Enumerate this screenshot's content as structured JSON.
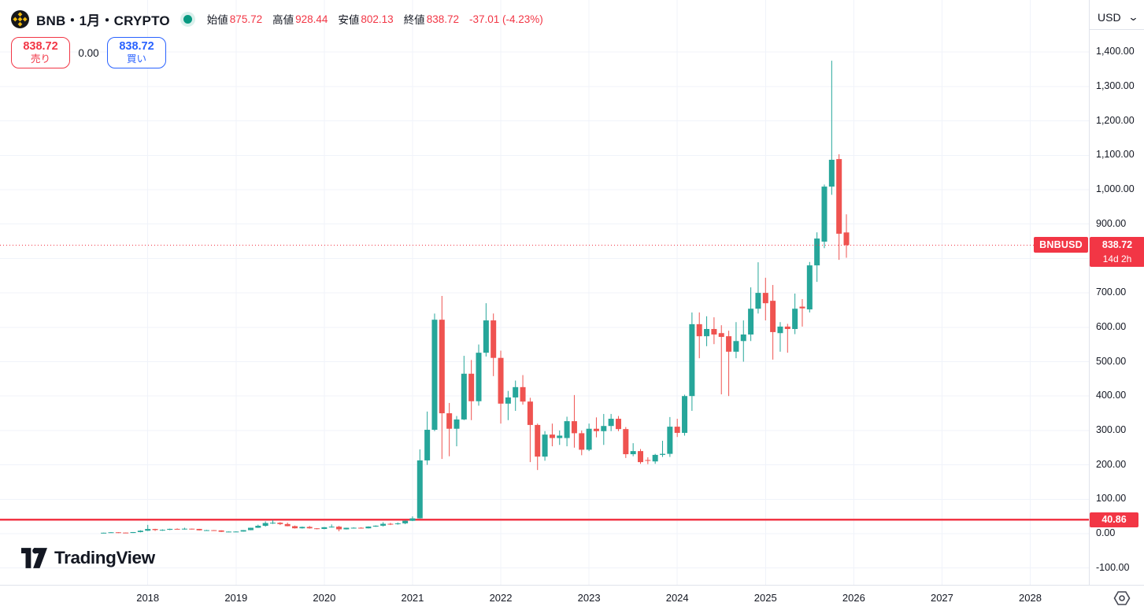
{
  "header": {
    "symbol_title": "BNB・1月・CRYPTO",
    "ohlc": {
      "open_label": "始値",
      "open": "875.72",
      "high_label": "高値",
      "high": "928.44",
      "low_label": "安値",
      "low": "802.13",
      "close_label": "終値",
      "close": "838.72",
      "change": "-37.01 (-4.23%)"
    }
  },
  "trade_panel": {
    "sell_price": "838.72",
    "sell_label": "売り",
    "spread": "0.00",
    "buy_price": "838.72",
    "buy_label": "買い"
  },
  "symbol_tag": "BNBUSD",
  "logo_text": "TradingView",
  "icons": {
    "chevron_down": "⌄"
  },
  "price_axis": {
    "currency": "USD",
    "labels": [
      {
        "text": "1,400.00",
        "value": 1400
      },
      {
        "text": "1,300.00",
        "value": 1300
      },
      {
        "text": "1,200.00",
        "value": 1200
      },
      {
        "text": "1,100.00",
        "value": 1100
      },
      {
        "text": "1,000.00",
        "value": 1000
      },
      {
        "text": "900.00",
        "value": 900
      },
      {
        "text": "700.00",
        "value": 700
      },
      {
        "text": "600.00",
        "value": 600
      },
      {
        "text": "500.00",
        "value": 500
      },
      {
        "text": "400.00",
        "value": 400
      },
      {
        "text": "300.00",
        "value": 300
      },
      {
        "text": "200.00",
        "value": 200
      },
      {
        "text": "100.00",
        "value": 100
      },
      {
        "text": "0.00",
        "value": 0
      },
      {
        "text": "-100.00",
        "value": -100
      }
    ],
    "last_price_badge": {
      "price": "838.72",
      "countdown": "14d 2h"
    },
    "level_badge": "40.86"
  },
  "colors": {
    "up": "#26a69a",
    "down": "#ef5350",
    "accent_red": "#f23645",
    "accent_blue": "#2962ff",
    "grid": "#f0f3fa",
    "axis_border": "#e0e3eb",
    "text": "#131722",
    "status_green": "#089981",
    "bnb_gold": "#f0b90b"
  },
  "chart_data": {
    "type": "candlestick",
    "symbol": "BNBUSD",
    "exchange": "CRYPTO",
    "interval": "1月",
    "currency": "USD",
    "title": "BNB・1月・CRYPTO",
    "grid": true,
    "y_grid": {
      "min": -100,
      "max": 1400,
      "step": 100
    },
    "x_year_labels": [
      2018,
      2019,
      2020,
      2021,
      2022,
      2023,
      2024,
      2025,
      2026,
      2027,
      2028
    ],
    "level_line": {
      "value": 40.86,
      "label": "40.86"
    },
    "last_price_line": {
      "value": 838.72,
      "label": "838.72",
      "countdown": "14d 2h"
    },
    "months_columns": [
      "month",
      "open",
      "high",
      "low",
      "close"
    ],
    "months": [
      [
        "2017-07",
        1.0,
        2.9,
        0.9,
        2.7
      ],
      [
        "2017-08",
        2.7,
        4.6,
        2.3,
        4.0
      ],
      [
        "2017-09",
        4.0,
        4.4,
        1.6,
        3.1
      ],
      [
        "2017-10",
        3.1,
        3.3,
        1.9,
        2.0
      ],
      [
        "2017-11",
        2.0,
        4.7,
        1.9,
        4.6
      ],
      [
        "2017-12",
        4.6,
        9.9,
        3.7,
        8.5
      ],
      [
        "2018-01",
        8.5,
        25.5,
        7.7,
        13.6
      ],
      [
        "2018-02",
        13.6,
        14.2,
        7.8,
        10.5
      ],
      [
        "2018-03",
        10.5,
        12.5,
        8.2,
        11.2
      ],
      [
        "2018-04",
        11.2,
        14.6,
        10.2,
        13.9
      ],
      [
        "2018-05",
        13.9,
        15.3,
        11.8,
        12.2
      ],
      [
        "2018-06",
        12.2,
        17.3,
        11.6,
        14.4
      ],
      [
        "2018-07",
        14.4,
        14.8,
        12.0,
        13.8
      ],
      [
        "2018-08",
        13.8,
        14.0,
        9.2,
        9.7
      ],
      [
        "2018-09",
        9.7,
        11.0,
        9.0,
        10.1
      ],
      [
        "2018-10",
        10.1,
        10.6,
        8.9,
        9.4
      ],
      [
        "2018-11",
        9.4,
        9.9,
        4.8,
        5.4
      ],
      [
        "2018-12",
        5.4,
        6.3,
        4.2,
        6.0
      ],
      [
        "2019-01",
        6.0,
        6.8,
        5.3,
        6.1
      ],
      [
        "2019-02",
        6.1,
        10.5,
        5.9,
        10.2
      ],
      [
        "2019-03",
        10.2,
        17.3,
        9.9,
        17.1
      ],
      [
        "2019-04",
        17.1,
        26.0,
        16.6,
        22.9
      ],
      [
        "2019-05",
        22.9,
        35.7,
        20.3,
        30.9
      ],
      [
        "2019-06",
        30.9,
        39.6,
        28.2,
        31.8
      ],
      [
        "2019-07",
        31.8,
        33.4,
        25.0,
        27.9
      ],
      [
        "2019-08",
        27.9,
        32.2,
        21.3,
        21.8
      ],
      [
        "2019-09",
        21.8,
        23.5,
        14.8,
        15.6
      ],
      [
        "2019-10",
        15.6,
        20.6,
        14.7,
        19.6
      ],
      [
        "2019-11",
        19.6,
        22.4,
        14.5,
        15.5
      ],
      [
        "2019-12",
        15.5,
        16.0,
        12.6,
        13.7
      ],
      [
        "2020-01",
        13.7,
        19.2,
        12.9,
        18.7
      ],
      [
        "2020-02",
        18.7,
        26.8,
        17.7,
        20.3
      ],
      [
        "2020-03",
        20.3,
        22.5,
        6.8,
        12.6
      ],
      [
        "2020-04",
        12.6,
        17.3,
        12.1,
        17.1
      ],
      [
        "2020-05",
        17.1,
        18.3,
        15.1,
        17.2
      ],
      [
        "2020-06",
        17.2,
        18.6,
        14.8,
        15.5
      ],
      [
        "2020-07",
        15.5,
        21.3,
        15.1,
        20.6
      ],
      [
        "2020-08",
        20.6,
        24.0,
        19.6,
        23.1
      ],
      [
        "2020-09",
        23.1,
        33.4,
        20.9,
        28.6
      ],
      [
        "2020-10",
        28.6,
        31.4,
        25.0,
        28.3
      ],
      [
        "2020-11",
        28.3,
        32.4,
        26.0,
        30.0
      ],
      [
        "2020-12",
        30.0,
        38.3,
        27.5,
        37.4
      ],
      [
        "2021-01",
        37.4,
        50.3,
        36.5,
        44.5
      ],
      [
        "2021-02",
        44.5,
        245,
        44.0,
        213
      ],
      [
        "2021-03",
        213,
        355,
        200,
        302
      ],
      [
        "2021-04",
        302,
        640,
        298,
        622
      ],
      [
        "2021-05",
        622,
        691,
        217,
        350
      ],
      [
        "2021-06",
        350,
        380,
        225,
        305
      ],
      [
        "2021-07",
        305,
        342,
        254,
        332
      ],
      [
        "2021-08",
        332,
        517,
        330,
        465
      ],
      [
        "2021-09",
        465,
        505,
        330,
        385
      ],
      [
        "2021-10",
        385,
        550,
        372,
        526
      ],
      [
        "2021-11",
        526,
        670,
        515,
        620
      ],
      [
        "2021-12",
        620,
        640,
        458,
        511
      ],
      [
        "2022-01",
        511,
        532,
        320,
        378
      ],
      [
        "2022-02",
        378,
        415,
        330,
        396
      ],
      [
        "2022-03",
        396,
        445,
        357,
        426
      ],
      [
        "2022-04",
        426,
        461,
        375,
        384
      ],
      [
        "2022-05",
        384,
        395,
        208,
        316
      ],
      [
        "2022-06",
        316,
        320,
        185,
        224
      ],
      [
        "2022-07",
        224,
        298,
        212,
        288
      ],
      [
        "2022-08",
        288,
        320,
        254,
        278
      ],
      [
        "2022-09",
        278,
        300,
        258,
        285
      ],
      [
        "2022-10",
        278,
        340,
        254,
        327
      ],
      [
        "2022-11",
        327,
        403,
        250,
        292
      ],
      [
        "2022-12",
        292,
        300,
        228,
        244
      ],
      [
        "2023-01",
        244,
        320,
        240,
        305
      ],
      [
        "2023-02",
        305,
        338,
        280,
        298
      ],
      [
        "2023-03",
        298,
        348,
        258,
        313
      ],
      [
        "2023-04",
        313,
        348,
        298,
        334
      ],
      [
        "2023-05",
        334,
        342,
        298,
        304
      ],
      [
        "2023-06",
        304,
        310,
        220,
        231
      ],
      [
        "2023-07",
        231,
        263,
        225,
        240
      ],
      [
        "2023-08",
        240,
        246,
        203,
        208
      ],
      [
        "2023-09",
        214,
        222,
        202,
        212
      ],
      [
        "2023-10",
        210,
        232,
        203,
        229
      ],
      [
        "2023-11",
        229,
        270,
        223,
        232
      ],
      [
        "2023-12",
        232,
        339,
        223,
        311
      ],
      [
        "2024-01",
        311,
        334,
        281,
        293
      ],
      [
        "2024-02",
        293,
        404,
        285,
        400
      ],
      [
        "2024-03",
        400,
        643,
        357,
        609
      ],
      [
        "2024-04",
        609,
        643,
        510,
        574
      ],
      [
        "2024-05",
        574,
        632,
        545,
        595
      ],
      [
        "2024-06",
        595,
        629,
        551,
        579
      ],
      [
        "2024-07",
        583,
        606,
        405,
        572
      ],
      [
        "2024-08",
        574,
        590,
        400,
        529
      ],
      [
        "2024-09",
        529,
        615,
        510,
        560
      ],
      [
        "2024-10",
        560,
        620,
        500,
        579
      ],
      [
        "2024-11",
        579,
        716,
        560,
        654
      ],
      [
        "2024-12",
        654,
        789,
        640,
        700
      ],
      [
        "2025-01",
        700,
        744,
        620,
        670
      ],
      [
        "2025-02",
        677,
        723,
        506,
        586
      ],
      [
        "2025-03",
        583,
        615,
        529,
        602
      ],
      [
        "2025-04",
        602,
        610,
        526,
        595
      ],
      [
        "2025-05",
        595,
        698,
        580,
        654
      ],
      [
        "2025-06",
        660,
        682,
        602,
        655
      ],
      [
        "2025-07",
        652,
        790,
        643,
        780
      ],
      [
        "2025-08",
        780,
        876,
        732,
        858
      ],
      [
        "2025-09",
        849,
        1015,
        830,
        1009
      ],
      [
        "2025-10",
        1009,
        1375,
        985,
        1087
      ],
      [
        "2025-11",
        1089,
        1103,
        796,
        872
      ],
      [
        "2025-12",
        875.72,
        928.44,
        802.13,
        838.72
      ]
    ]
  }
}
